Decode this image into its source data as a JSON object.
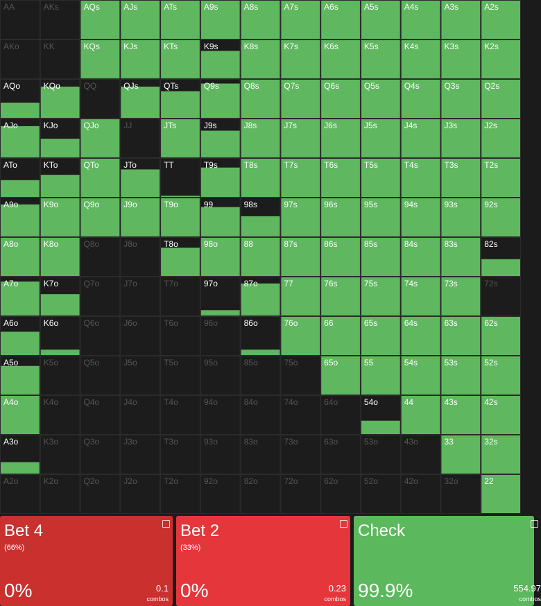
{
  "grid": {
    "rows": [
      [
        {
          "hand": "AA",
          "freq": 0
        },
        {
          "hand": "AKs",
          "freq": 0
        },
        {
          "hand": "AQs",
          "freq": 100
        },
        {
          "hand": "AJs",
          "freq": 100
        },
        {
          "hand": "ATs",
          "freq": 100
        },
        {
          "hand": "A9s",
          "freq": 100
        },
        {
          "hand": "A8s",
          "freq": 100
        },
        {
          "hand": "A7s",
          "freq": 100
        },
        {
          "hand": "A6s",
          "freq": 100
        },
        {
          "hand": "A5s",
          "freq": 100
        },
        {
          "hand": "A4s",
          "freq": 100
        },
        {
          "hand": "A3s",
          "freq": 100
        },
        {
          "hand": "A2s",
          "freq": 100
        }
      ],
      [
        {
          "hand": "AKo",
          "freq": 0
        },
        {
          "hand": "KK",
          "freq": 0
        },
        {
          "hand": "KQs",
          "freq": 100
        },
        {
          "hand": "KJs",
          "freq": 100
        },
        {
          "hand": "KTs",
          "freq": 100
        },
        {
          "hand": "K9s",
          "freq": 72
        },
        {
          "hand": "K8s",
          "freq": 100
        },
        {
          "hand": "K7s",
          "freq": 100
        },
        {
          "hand": "K6s",
          "freq": 100
        },
        {
          "hand": "K5s",
          "freq": 100
        },
        {
          "hand": "K4s",
          "freq": 100
        },
        {
          "hand": "K3s",
          "freq": 100
        },
        {
          "hand": "K2s",
          "freq": 100
        }
      ],
      [
        {
          "hand": "AQo",
          "freq": 40
        },
        {
          "hand": "KQo",
          "freq": 82
        },
        {
          "hand": "QQ",
          "freq": 0
        },
        {
          "hand": "QJs",
          "freq": 82
        },
        {
          "hand": "QTs",
          "freq": 70
        },
        {
          "hand": "Q9s",
          "freq": 90
        },
        {
          "hand": "Q8s",
          "freq": 100
        },
        {
          "hand": "Q7s",
          "freq": 100
        },
        {
          "hand": "Q6s",
          "freq": 100
        },
        {
          "hand": "Q5s",
          "freq": 100
        },
        {
          "hand": "Q4s",
          "freq": 100
        },
        {
          "hand": "Q3s",
          "freq": 100
        },
        {
          "hand": "Q2s",
          "freq": 100
        }
      ],
      [
        {
          "hand": "AJo",
          "freq": 82
        },
        {
          "hand": "KJo",
          "freq": 49
        },
        {
          "hand": "QJo",
          "freq": 100
        },
        {
          "hand": "JJ",
          "freq": 0
        },
        {
          "hand": "JTs",
          "freq": 100
        },
        {
          "hand": "J9s",
          "freq": 70
        },
        {
          "hand": "J8s",
          "freq": 100
        },
        {
          "hand": "J7s",
          "freq": 100
        },
        {
          "hand": "J6s",
          "freq": 100
        },
        {
          "hand": "J5s",
          "freq": 100
        },
        {
          "hand": "J4s",
          "freq": 100
        },
        {
          "hand": "J3s",
          "freq": 100
        },
        {
          "hand": "J2s",
          "freq": 100
        }
      ],
      [
        {
          "hand": "ATo",
          "freq": 44
        },
        {
          "hand": "KTo",
          "freq": 58
        },
        {
          "hand": "QTo",
          "freq": 100
        },
        {
          "hand": "JTo",
          "freq": 72
        },
        {
          "hand": "TT",
          "freq": 3
        },
        {
          "hand": "T9s",
          "freq": 77
        },
        {
          "hand": "T8s",
          "freq": 100
        },
        {
          "hand": "T7s",
          "freq": 100
        },
        {
          "hand": "T6s",
          "freq": 100
        },
        {
          "hand": "T5s",
          "freq": 100
        },
        {
          "hand": "T4s",
          "freq": 100
        },
        {
          "hand": "T3s",
          "freq": 100
        },
        {
          "hand": "T2s",
          "freq": 100
        }
      ],
      [
        {
          "hand": "A9o",
          "freq": 84
        },
        {
          "hand": "K9o",
          "freq": 100
        },
        {
          "hand": "Q9o",
          "freq": 100
        },
        {
          "hand": "J9o",
          "freq": 100
        },
        {
          "hand": "T9o",
          "freq": 100
        },
        {
          "hand": "99",
          "freq": 77
        },
        {
          "hand": "98s",
          "freq": 53
        },
        {
          "hand": "97s",
          "freq": 100
        },
        {
          "hand": "96s",
          "freq": 100
        },
        {
          "hand": "95s",
          "freq": 100
        },
        {
          "hand": "94s",
          "freq": 100
        },
        {
          "hand": "93s",
          "freq": 100
        },
        {
          "hand": "92s",
          "freq": 100
        }
      ],
      [
        {
          "hand": "A8o",
          "freq": 100
        },
        {
          "hand": "K8o",
          "freq": 100
        },
        {
          "hand": "Q8o",
          "freq": 0
        },
        {
          "hand": "J8o",
          "freq": 0
        },
        {
          "hand": "T8o",
          "freq": 74
        },
        {
          "hand": "98o",
          "freq": 100
        },
        {
          "hand": "88",
          "freq": 100
        },
        {
          "hand": "87s",
          "freq": 100
        },
        {
          "hand": "86s",
          "freq": 100
        },
        {
          "hand": "85s",
          "freq": 100
        },
        {
          "hand": "84s",
          "freq": 100
        },
        {
          "hand": "83s",
          "freq": 100
        },
        {
          "hand": "82s",
          "freq": 44
        }
      ],
      [
        {
          "hand": "A7o",
          "freq": 89
        },
        {
          "hand": "K7o",
          "freq": 56
        },
        {
          "hand": "Q7o",
          "freq": 0
        },
        {
          "hand": "J7o",
          "freq": 0
        },
        {
          "hand": "T7o",
          "freq": 0
        },
        {
          "hand": "97o",
          "freq": 14
        },
        {
          "hand": "87o",
          "freq": 84
        },
        {
          "hand": "77",
          "freq": 100
        },
        {
          "hand": "76s",
          "freq": 100
        },
        {
          "hand": "75s",
          "freq": 100
        },
        {
          "hand": "74s",
          "freq": 100
        },
        {
          "hand": "73s",
          "freq": 100
        },
        {
          "hand": "72s",
          "freq": 0
        }
      ],
      [
        {
          "hand": "A6o",
          "freq": 61
        },
        {
          "hand": "K6o",
          "freq": 14
        },
        {
          "hand": "Q6o",
          "freq": 0
        },
        {
          "hand": "J6o",
          "freq": 0
        },
        {
          "hand": "T6o",
          "freq": 0
        },
        {
          "hand": "96o",
          "freq": 0
        },
        {
          "hand": "86o",
          "freq": 14
        },
        {
          "hand": "76o",
          "freq": 100
        },
        {
          "hand": "66",
          "freq": 100
        },
        {
          "hand": "65s",
          "freq": 100
        },
        {
          "hand": "64s",
          "freq": 100
        },
        {
          "hand": "63s",
          "freq": 100
        },
        {
          "hand": "62s",
          "freq": 100
        }
      ],
      [
        {
          "hand": "A5o",
          "freq": 75
        },
        {
          "hand": "K5o",
          "freq": 0
        },
        {
          "hand": "Q5o",
          "freq": 0
        },
        {
          "hand": "J5o",
          "freq": 0
        },
        {
          "hand": "T5o",
          "freq": 0
        },
        {
          "hand": "95o",
          "freq": 0
        },
        {
          "hand": "85o",
          "freq": 0
        },
        {
          "hand": "75o",
          "freq": 0
        },
        {
          "hand": "65o",
          "freq": 100
        },
        {
          "hand": "55",
          "freq": 100
        },
        {
          "hand": "54s",
          "freq": 100
        },
        {
          "hand": "53s",
          "freq": 100
        },
        {
          "hand": "52s",
          "freq": 100
        }
      ],
      [
        {
          "hand": "A4o",
          "freq": 100
        },
        {
          "hand": "K4o",
          "freq": 0
        },
        {
          "hand": "Q4o",
          "freq": 0
        },
        {
          "hand": "J4o",
          "freq": 0
        },
        {
          "hand": "T4o",
          "freq": 0
        },
        {
          "hand": "94o",
          "freq": 0
        },
        {
          "hand": "84o",
          "freq": 0
        },
        {
          "hand": "74o",
          "freq": 0
        },
        {
          "hand": "64o",
          "freq": 0
        },
        {
          "hand": "54o",
          "freq": 35
        },
        {
          "hand": "44",
          "freq": 100
        },
        {
          "hand": "43s",
          "freq": 100
        },
        {
          "hand": "42s",
          "freq": 100
        }
      ],
      [
        {
          "hand": "A3o",
          "freq": 30
        },
        {
          "hand": "K3o",
          "freq": 0
        },
        {
          "hand": "Q3o",
          "freq": 0
        },
        {
          "hand": "J3o",
          "freq": 0
        },
        {
          "hand": "T3o",
          "freq": 0
        },
        {
          "hand": "93o",
          "freq": 0
        },
        {
          "hand": "83o",
          "freq": 0
        },
        {
          "hand": "73o",
          "freq": 0
        },
        {
          "hand": "63o",
          "freq": 0
        },
        {
          "hand": "53o",
          "freq": 0
        },
        {
          "hand": "43o",
          "freq": 0
        },
        {
          "hand": "33",
          "freq": 100
        },
        {
          "hand": "32s",
          "freq": 100
        }
      ],
      [
        {
          "hand": "A2o",
          "freq": 0
        },
        {
          "hand": "K2o",
          "freq": 0
        },
        {
          "hand": "Q2o",
          "freq": 0
        },
        {
          "hand": "J2o",
          "freq": 0
        },
        {
          "hand": "T2o",
          "freq": 0
        },
        {
          "hand": "92o",
          "freq": 0
        },
        {
          "hand": "82o",
          "freq": 0
        },
        {
          "hand": "72o",
          "freq": 0
        },
        {
          "hand": "62o",
          "freq": 0
        },
        {
          "hand": "52o",
          "freq": 0
        },
        {
          "hand": "42o",
          "freq": 0
        },
        {
          "hand": "32o",
          "freq": 0
        },
        {
          "hand": "22",
          "freq": 100
        }
      ]
    ]
  },
  "actions": [
    {
      "name": "Bet 4",
      "size": "(66%)",
      "frequency": "0%",
      "combos": "0.1",
      "combos_label": "combos",
      "color": "#c9302e"
    },
    {
      "name": "Bet 2",
      "size": "(33%)",
      "frequency": "0%",
      "combos": "0.23",
      "combos_label": "combos",
      "color": "#e5373b"
    },
    {
      "name": "Check",
      "size": "",
      "frequency": "99.9%",
      "combos": "554.97",
      "combos_label": "combos",
      "color": "#5cb85c"
    }
  ]
}
